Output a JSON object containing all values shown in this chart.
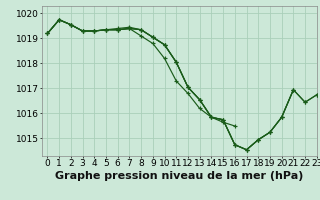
{
  "background_color": "#cce8d8",
  "grid_color": "#aacfba",
  "line_color": "#1a5c1a",
  "ylim": [
    1014.3,
    1020.3
  ],
  "xlim": [
    -0.5,
    23
  ],
  "yticks": [
    1015,
    1016,
    1017,
    1018,
    1019,
    1020
  ],
  "xticks": [
    0,
    1,
    2,
    3,
    4,
    5,
    6,
    7,
    8,
    9,
    10,
    11,
    12,
    13,
    14,
    15,
    16,
    17,
    18,
    19,
    20,
    21,
    22,
    23
  ],
  "xlabel": "Graphe pression niveau de la mer (hPa)",
  "series": [
    [
      1019.2,
      1019.75,
      1019.55,
      1019.3,
      1019.3,
      1019.35,
      1019.4,
      1019.45,
      1019.35,
      1019.05,
      1018.75,
      1018.05,
      1017.05,
      1016.55,
      1015.85,
      1015.75,
      1014.75,
      1014.55,
      1014.95,
      1015.25,
      1015.85,
      1016.95,
      null,
      null
    ],
    [
      1019.2,
      1019.75,
      1019.55,
      1019.3,
      1019.3,
      1019.35,
      1019.35,
      1019.4,
      1019.1,
      1018.8,
      1018.2,
      1017.3,
      1016.8,
      1016.2,
      1015.85,
      1015.65,
      1015.5,
      null,
      null,
      null,
      null,
      null,
      null,
      null
    ],
    [
      1019.2,
      1019.75,
      1019.55,
      1019.3,
      1019.3,
      1019.35,
      1019.35,
      1019.4,
      1019.35,
      1019.05,
      1018.75,
      1018.05,
      1017.05,
      1016.55,
      1015.85,
      1015.75,
      1014.75,
      1014.55,
      1014.95,
      1015.25,
      1015.85,
      1016.95,
      1016.45,
      1016.75
    ],
    [
      1019.2,
      1019.75,
      1019.55,
      1019.3,
      1019.3,
      1019.35,
      1019.35,
      1019.4,
      1019.35,
      1019.05,
      1018.75,
      1018.05,
      1017.05,
      1016.55,
      1015.85,
      1015.75,
      1014.75,
      1014.55,
      1014.95,
      1015.25,
      1015.85,
      1016.95,
      1016.45,
      1016.75
    ]
  ],
  "xlabel_fontsize": 8,
  "tick_fontsize": 6.5
}
